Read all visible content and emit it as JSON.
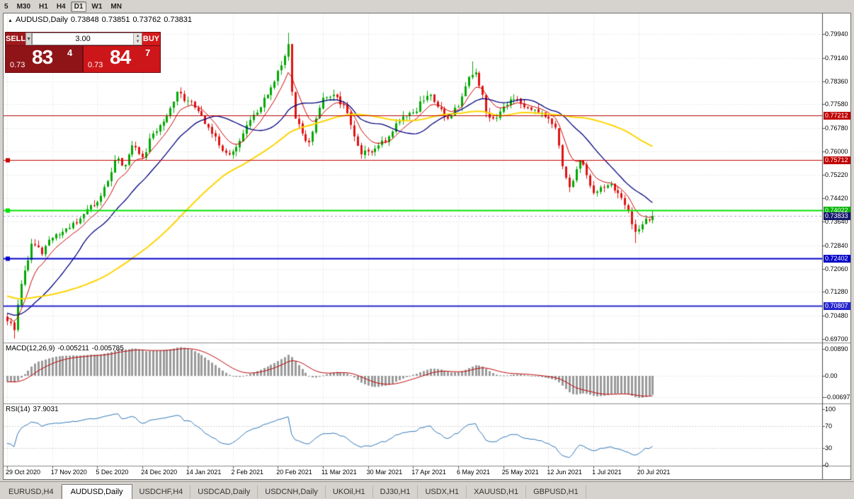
{
  "toolbar": {
    "periods": [
      {
        "label": "5",
        "active": false
      },
      {
        "label": "M30",
        "active": false
      },
      {
        "label": "H1",
        "active": false
      },
      {
        "label": "H4",
        "active": false
      },
      {
        "label": "D1",
        "active": true
      },
      {
        "label": "W1",
        "active": false
      },
      {
        "label": "MN",
        "active": false
      }
    ]
  },
  "chart": {
    "symbol_header": {
      "symbol": "AUDUSD,Daily",
      "open": "0.73848",
      "high": "0.73851",
      "low": "0.73762",
      "close": "0.73831"
    },
    "trade_panel": {
      "sell_label": "SELL",
      "buy_label": "BUY",
      "volume": "3.00",
      "sell_small": "0.73",
      "sell_big": "83",
      "sell_sup": "4",
      "buy_small": "0.73",
      "buy_big": "84",
      "buy_sup": "7"
    },
    "price_axis": [
      "0.79940",
      "0.79140",
      "0.78360",
      "0.77580",
      "0.76780",
      "0.76000",
      "0.75220",
      "0.74420",
      "0.73640",
      "0.72840",
      "0.72060",
      "0.71280",
      "0.70480",
      "0.69700"
    ],
    "dates": [
      "29 Oct 2020",
      "17 Nov 2020",
      "5 Dec 2020",
      "24 Dec 2020",
      "14 Jan 2021",
      "2 Feb 2021",
      "20 Feb 2021",
      "11 Mar 2021",
      "30 Mar 2021",
      "17 Apr 2021",
      "6 May 2021",
      "25 May 2021",
      "12 Jun 2021",
      "1 Jul 2021",
      "20 Jul 2021"
    ],
    "current_price": {
      "value": 0.73833,
      "label": "0.73833",
      "badge": "#16166e"
    },
    "macd": {
      "label": "MACD(12,26,9)",
      "value1": "-0.005211",
      "value2": "-0.005785",
      "y_tick_labels": [
        "0.00890",
        "0.00",
        "-0.00697"
      ]
    },
    "rsi": {
      "label": "RSI(14)",
      "value": "37.9031",
      "y_tick_labels": [
        "100",
        "70",
        "30",
        "0"
      ]
    },
    "chart_data": {
      "type": "candlestick",
      "symbol": "AUDUSD",
      "timeframe": "Daily",
      "num_candles": 187,
      "bars_per_tick": 13,
      "y_ticks": [
        0.7994,
        0.7914,
        0.7836,
        0.7758,
        0.7678,
        0.76,
        0.7522,
        0.7442,
        0.7364,
        0.7284,
        0.7206,
        0.7128,
        0.7048,
        0.697
      ],
      "up_color": "#00a800",
      "down_color": "#e01212",
      "noise": 0.0012,
      "wick_extra": 0.0018,
      "close_anchors": [
        [
          0,
          0.703
        ],
        [
          2,
          0.7
        ],
        [
          4,
          0.7155
        ],
        [
          7,
          0.729
        ],
        [
          10,
          0.7255
        ],
        [
          13,
          0.731
        ],
        [
          16,
          0.733
        ],
        [
          19,
          0.736
        ],
        [
          22,
          0.739
        ],
        [
          26,
          0.743
        ],
        [
          29,
          0.75
        ],
        [
          31,
          0.757
        ],
        [
          34,
          0.7555
        ],
        [
          36,
          0.762
        ],
        [
          39,
          0.758
        ],
        [
          42,
          0.766
        ],
        [
          45,
          0.77
        ],
        [
          47,
          0.7745
        ],
        [
          49,
          0.78
        ],
        [
          52,
          0.777
        ],
        [
          55,
          0.7735
        ],
        [
          58,
          0.768
        ],
        [
          61,
          0.762
        ],
        [
          63,
          0.7595
        ],
        [
          65,
          0.76
        ],
        [
          68,
          0.766
        ],
        [
          72,
          0.773
        ],
        [
          75,
          0.779
        ],
        [
          78,
          0.787
        ],
        [
          80,
          0.792
        ],
        [
          81,
          0.796
        ],
        [
          82,
          0.78
        ],
        [
          83,
          0.771
        ],
        [
          85,
          0.766
        ],
        [
          87,
          0.763
        ],
        [
          89,
          0.771
        ],
        [
          91,
          0.778
        ],
        [
          94,
          0.779
        ],
        [
          97,
          0.7755
        ],
        [
          100,
          0.765
        ],
        [
          102,
          0.759
        ],
        [
          104,
          0.76
        ],
        [
          107,
          0.762
        ],
        [
          110,
          0.765
        ],
        [
          113,
          0.77
        ],
        [
          117,
          0.773
        ],
        [
          120,
          0.777
        ],
        [
          122,
          0.779
        ],
        [
          124,
          0.775
        ],
        [
          127,
          0.771
        ],
        [
          130,
          0.775
        ],
        [
          133,
          0.785
        ],
        [
          135,
          0.7865
        ],
        [
          137,
          0.779
        ],
        [
          138,
          0.773
        ],
        [
          140,
          0.771
        ],
        [
          143,
          0.775
        ],
        [
          146,
          0.7775
        ],
        [
          148,
          0.776
        ],
        [
          150,
          0.7745
        ],
        [
          152,
          0.774
        ],
        [
          154,
          0.773
        ],
        [
          156,
          0.771
        ],
        [
          158,
          0.768
        ],
        [
          160,
          0.755
        ],
        [
          162,
          0.748
        ],
        [
          164,
          0.754
        ],
        [
          165,
          0.757
        ],
        [
          167,
          0.752
        ],
        [
          169,
          0.746
        ],
        [
          171,
          0.748
        ],
        [
          174,
          0.749
        ],
        [
          176,
          0.746
        ],
        [
          179,
          0.74
        ],
        [
          181,
          0.733
        ],
        [
          183,
          0.7355
        ],
        [
          186,
          0.7383
        ]
      ],
      "wick_overrides": [
        {
          "i": 2,
          "low": 0.6972
        },
        {
          "i": 81,
          "high": 0.7998
        },
        {
          "i": 134,
          "high": 0.7902
        },
        {
          "i": 181,
          "low": 0.7292
        }
      ],
      "moving_averages": [
        {
          "type": "ema",
          "period": 8,
          "color": "#cc0000",
          "width": 1
        },
        {
          "type": "sma",
          "period": 20,
          "color": "#000080",
          "width": 1.3
        },
        {
          "type": "sma",
          "period": 60,
          "color": "#ffd400",
          "width": 2
        }
      ],
      "macd": {
        "fast": 12,
        "slow": 26,
        "signal": 9,
        "histogram_color": "#9a9a9a",
        "signal_color": "#c00000",
        "y_ticks": [
          0.0089,
          0,
          -0.00697
        ]
      },
      "rsi": {
        "period": 14,
        "color": "#2d74b5",
        "levels": [
          70,
          30
        ],
        "y_ticks": [
          100,
          70,
          30,
          0
        ]
      },
      "hlines": [
        {
          "price": 0.77212,
          "label": "0.77212",
          "color": "#b40000",
          "width": 1,
          "badge": "#c00000",
          "handle": false
        },
        {
          "price": 0.75712,
          "label": "0.75712",
          "color": "#c80000",
          "width": 1,
          "badge": "#c00000",
          "handle": true
        },
        {
          "price": 0.74022,
          "label": "0.74022",
          "color": "#00e300",
          "width": 2,
          "badge": "#00b400",
          "handle": true
        },
        {
          "price": 0.72402,
          "label": "0.72402",
          "color": "#0000c8",
          "width": 2,
          "badge": "#0000c8",
          "handle": true
        },
        {
          "price": 0.70807,
          "label": "0.70807",
          "color": "#2424cc",
          "width": 2,
          "badge": "#2424cc",
          "handle": false
        }
      ]
    }
  },
  "tabs": [
    {
      "label": "EURUSD,H4",
      "active": false
    },
    {
      "label": "AUDUSD,Daily",
      "active": true
    },
    {
      "label": "USDCHF,H4",
      "active": false
    },
    {
      "label": "USDCAD,Daily",
      "active": false
    },
    {
      "label": "USDCNH,Daily",
      "active": false
    },
    {
      "label": "UKOil,H1",
      "active": false
    },
    {
      "label": "DJ30,H1",
      "active": false
    },
    {
      "label": "USDX,H1",
      "active": false
    },
    {
      "label": "XAUUSD,H1",
      "active": false
    },
    {
      "label": "GBPUSD,H1",
      "active": false
    }
  ]
}
